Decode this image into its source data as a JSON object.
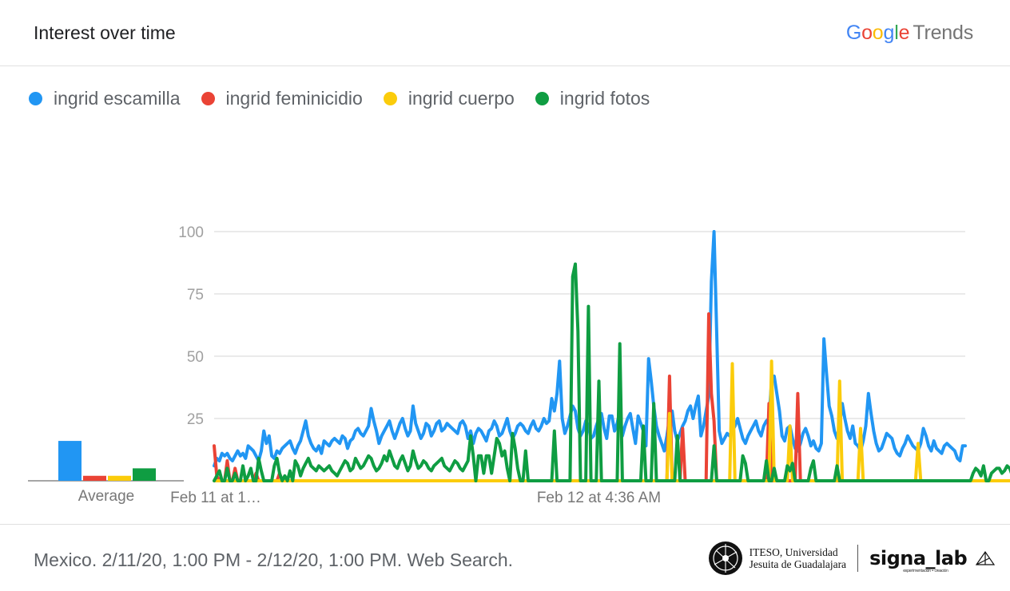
{
  "header": {
    "title": "Interest over time",
    "brand_word": "Google",
    "brand_product": "Trends"
  },
  "footer": {
    "note": "Mexico. 2/11/20, 1:00 PM - 2/12/20, 1:00 PM. Web Search.",
    "iteso_line1": "ITESO, Universidad",
    "iteso_line2": "Jesuita de Guadalajara",
    "signa": "signa_lab",
    "signa_sub": "experimentación • creación"
  },
  "chart_data": {
    "type": "line",
    "ylim": [
      0,
      100
    ],
    "yticks": [
      25,
      50,
      75,
      100
    ],
    "xtick_labels": [
      {
        "label": "Feb 11 at 1…",
        "index": 0
      },
      {
        "label": "Feb 12 at 4:36 AM",
        "index": 147
      }
    ],
    "average_label": "Average",
    "colors": {
      "ingrid escamilla": "#2196F3",
      "ingrid feminicidio": "#EA4335",
      "ingrid cuerpo": "#FBCC0B",
      "ingrid fotos": "#0F9D42"
    },
    "series": [
      {
        "name": "ingrid escamilla",
        "color": "#2196F3",
        "average": 16,
        "values": [
          6,
          9,
          8,
          11,
          10,
          11,
          9,
          8,
          10,
          12,
          10,
          11,
          9,
          14,
          13,
          12,
          10,
          8,
          12,
          20,
          15,
          18,
          10,
          9,
          12,
          11,
          13,
          14,
          15,
          16,
          13,
          11,
          14,
          16,
          20,
          24,
          18,
          15,
          13,
          12,
          14,
          11,
          16,
          15,
          14,
          16,
          17,
          16,
          15,
          18,
          17,
          13,
          16,
          17,
          20,
          21,
          19,
          18,
          20,
          22,
          29,
          24,
          20,
          15,
          18,
          20,
          22,
          24,
          20,
          17,
          20,
          23,
          25,
          21,
          18,
          20,
          30,
          23,
          20,
          17,
          19,
          23,
          22,
          18,
          20,
          23,
          24,
          20,
          21,
          23,
          22,
          21,
          20,
          19,
          23,
          24,
          22,
          17,
          20,
          15,
          19,
          21,
          20,
          18,
          16,
          20,
          21,
          24,
          22,
          18,
          19,
          22,
          25,
          20,
          17,
          19,
          22,
          23,
          22,
          20,
          19,
          22,
          24,
          21,
          20,
          22,
          25,
          23,
          24,
          33,
          28,
          35,
          48,
          25,
          19,
          22,
          26,
          30,
          28,
          21,
          18,
          20,
          24,
          22,
          17,
          18,
          22,
          25,
          27,
          21,
          17,
          26,
          26,
          20,
          23,
          28,
          18,
          22,
          25,
          27,
          21,
          15,
          26,
          23,
          20,
          14,
          49,
          40,
          30,
          22,
          18,
          15,
          12,
          18,
          25,
          28,
          20,
          16,
          19,
          22,
          24,
          28,
          30,
          25,
          30,
          34,
          18,
          22,
          28,
          34,
          80,
          100,
          60,
          20,
          15,
          17,
          19,
          18,
          20,
          22,
          25,
          21,
          17,
          15,
          18,
          20,
          22,
          24,
          20,
          18,
          22,
          24,
          25,
          40,
          42,
          35,
          28,
          18,
          16,
          21,
          22,
          17,
          13,
          12,
          15,
          19,
          21,
          18,
          14,
          16,
          13,
          12,
          15,
          57,
          43,
          30,
          26,
          20,
          17,
          22,
          31,
          25,
          20,
          17,
          22,
          15,
          14,
          12,
          16,
          22,
          35,
          27,
          20,
          15,
          12,
          13,
          16,
          19,
          18,
          17,
          13,
          11,
          10,
          13,
          15,
          18,
          16,
          14,
          13,
          12,
          15,
          21,
          18,
          14,
          12,
          16,
          13,
          12,
          11,
          14,
          15,
          14,
          13,
          12,
          9,
          8,
          14,
          14
        ]
      },
      {
        "name": "ingrid feminicidio",
        "color": "#EA4335",
        "average": 2,
        "values": [
          14,
          2,
          0,
          0,
          0,
          8,
          0,
          0,
          5,
          0,
          0,
          0,
          0,
          0,
          0,
          0,
          3,
          0,
          0,
          0,
          0,
          0,
          0,
          0,
          0,
          3,
          0,
          0,
          0,
          0,
          0,
          0,
          0,
          0,
          0,
          0,
          0,
          0,
          0,
          0,
          0,
          0,
          0,
          0,
          0,
          0,
          0,
          0,
          0,
          0,
          0,
          0,
          0,
          0,
          0,
          0,
          0,
          0,
          0,
          0,
          0,
          0,
          0,
          0,
          0,
          0,
          0,
          0,
          0,
          0,
          0,
          0,
          0,
          0,
          0,
          0,
          0,
          0,
          0,
          0,
          0,
          0,
          0,
          0,
          0,
          0,
          0,
          0,
          0,
          0,
          0,
          0,
          0,
          0,
          0,
          0,
          0,
          0,
          0,
          0,
          0,
          0,
          0,
          0,
          0,
          0,
          0,
          0,
          0,
          0,
          0,
          0,
          0,
          0,
          0,
          0,
          0,
          0,
          0,
          0,
          0,
          0,
          0,
          0,
          0,
          0,
          0,
          0,
          0,
          0,
          0,
          0,
          0,
          0,
          0,
          0,
          0,
          0,
          0,
          0,
          0,
          0,
          0,
          0,
          0,
          0,
          0,
          0,
          0,
          0,
          0,
          0,
          0,
          0,
          0,
          0,
          0,
          0,
          0,
          0,
          0,
          0,
          0,
          0,
          0,
          0,
          0,
          0,
          0,
          0,
          0,
          0,
          0,
          0,
          42,
          0,
          0,
          0,
          0,
          21,
          0,
          0,
          0,
          0,
          0,
          0,
          0,
          0,
          0,
          67,
          35,
          24,
          0,
          0,
          0,
          0,
          0,
          0,
          0,
          0,
          0,
          0,
          0,
          0,
          0,
          0,
          0,
          0,
          0,
          0,
          0,
          0,
          31,
          0,
          0,
          0,
          0,
          0,
          0,
          0,
          0,
          0,
          0,
          35,
          0,
          0,
          0,
          0,
          0,
          0,
          0,
          0,
          0,
          0,
          0,
          0,
          0,
          0,
          0,
          0,
          0,
          0,
          0,
          0,
          0,
          0,
          0,
          0,
          0,
          0,
          0,
          0,
          0,
          0,
          0,
          0,
          0,
          0,
          0,
          0,
          0,
          0,
          0,
          0,
          0,
          0,
          0,
          0,
          0,
          0,
          0,
          0,
          0,
          0,
          0,
          0,
          0,
          0,
          0,
          0,
          0,
          0,
          0,
          0,
          0,
          0,
          0,
          0,
          0,
          0,
          0,
          0,
          0,
          0,
          0,
          0,
          0,
          0,
          0,
          0,
          0,
          0,
          0,
          0,
          0,
          0,
          0,
          0,
          0,
          0,
          0,
          0,
          0,
          0,
          0,
          0,
          0,
          0,
          0,
          0,
          0,
          0,
          0,
          0,
          5,
          0,
          2,
          0,
          0,
          0
        ]
      },
      {
        "name": "ingrid cuerpo",
        "color": "#FBCC0B",
        "average": 2,
        "values": [
          0,
          0,
          0,
          0,
          0,
          0,
          0,
          0,
          0,
          0,
          0,
          0,
          0,
          0,
          0,
          0,
          0,
          0,
          0,
          0,
          0,
          0,
          0,
          0,
          0,
          0,
          0,
          0,
          0,
          0,
          0,
          0,
          0,
          0,
          0,
          0,
          0,
          0,
          0,
          0,
          0,
          0,
          0,
          0,
          0,
          0,
          0,
          0,
          0,
          0,
          0,
          0,
          0,
          0,
          0,
          0,
          0,
          0,
          0,
          0,
          0,
          0,
          0,
          0,
          0,
          0,
          0,
          0,
          0,
          0,
          0,
          0,
          0,
          0,
          0,
          0,
          0,
          0,
          0,
          0,
          0,
          0,
          0,
          0,
          0,
          0,
          0,
          0,
          0,
          0,
          0,
          0,
          0,
          0,
          0,
          0,
          0,
          0,
          0,
          0,
          0,
          0,
          0,
          0,
          0,
          0,
          0,
          0,
          0,
          0,
          0,
          0,
          0,
          0,
          0,
          0,
          0,
          0,
          0,
          0,
          0,
          0,
          0,
          0,
          0,
          0,
          0,
          0,
          0,
          0,
          0,
          0,
          0,
          0,
          0,
          0,
          0,
          0,
          0,
          0,
          0,
          0,
          0,
          0,
          0,
          0,
          0,
          0,
          0,
          0,
          0,
          0,
          0,
          0,
          0,
          0,
          0,
          0,
          0,
          0,
          0,
          0,
          0,
          0,
          0,
          0,
          0,
          0,
          0,
          0,
          0,
          0,
          0,
          0,
          27,
          0,
          0,
          0,
          0,
          0,
          0,
          0,
          0,
          0,
          0,
          0,
          0,
          0,
          0,
          0,
          0,
          0,
          0,
          0,
          0,
          0,
          0,
          0,
          47,
          0,
          0,
          0,
          0,
          0,
          0,
          0,
          0,
          0,
          0,
          0,
          0,
          0,
          0,
          48,
          0,
          0,
          0,
          0,
          0,
          0,
          22,
          0,
          0,
          0,
          0,
          0,
          0,
          0,
          0,
          0,
          0,
          0,
          0,
          0,
          0,
          0,
          0,
          0,
          0,
          40,
          0,
          0,
          0,
          0,
          0,
          0,
          0,
          21,
          0,
          0,
          0,
          0,
          0,
          0,
          0,
          0,
          0,
          0,
          0,
          0,
          0,
          0,
          0,
          0,
          0,
          0,
          0,
          0,
          0,
          15,
          0,
          0,
          0,
          0,
          0,
          0,
          0,
          0,
          0,
          0,
          0,
          0,
          0,
          0,
          0,
          0,
          0,
          0,
          0,
          0,
          0,
          0,
          0,
          0,
          0,
          0,
          0,
          0,
          0,
          0,
          0,
          0,
          0,
          0,
          0,
          0,
          0,
          0,
          0,
          0
        ]
      },
      {
        "name": "ingrid fotos",
        "color": "#0F9D42",
        "average": 5,
        "values": [
          0,
          2,
          4,
          0,
          0,
          5,
          0,
          0,
          3,
          0,
          0,
          6,
          0,
          2,
          5,
          0,
          0,
          9,
          4,
          0,
          0,
          0,
          0,
          6,
          9,
          3,
          0,
          2,
          0,
          4,
          0,
          8,
          6,
          2,
          5,
          7,
          9,
          6,
          5,
          4,
          6,
          5,
          4,
          5,
          6,
          4,
          3,
          2,
          4,
          6,
          8,
          7,
          4,
          5,
          9,
          7,
          5,
          6,
          8,
          10,
          9,
          6,
          4,
          5,
          7,
          10,
          8,
          12,
          9,
          6,
          5,
          8,
          10,
          7,
          4,
          6,
          12,
          8,
          5,
          6,
          8,
          7,
          5,
          4,
          6,
          7,
          8,
          9,
          6,
          5,
          4,
          6,
          8,
          7,
          5,
          4,
          6,
          8,
          18,
          10,
          0,
          10,
          10,
          3,
          10,
          10,
          3,
          10,
          17,
          15,
          10,
          12,
          5,
          0,
          19,
          13,
          5,
          0,
          0,
          12,
          0,
          0,
          0,
          0,
          0,
          0,
          0,
          0,
          0,
          0,
          20,
          0,
          0,
          0,
          0,
          0,
          0,
          82,
          87,
          60,
          0,
          0,
          0,
          70,
          0,
          0,
          0,
          40,
          0,
          0,
          0,
          0,
          0,
          0,
          0,
          55,
          0,
          0,
          0,
          0,
          0,
          0,
          0,
          0,
          22,
          0,
          0,
          0,
          31,
          0,
          0,
          0,
          0,
          0,
          0,
          0,
          0,
          18,
          0,
          0,
          0,
          0,
          0,
          0,
          0,
          0,
          0,
          0,
          0,
          0,
          0,
          14,
          0,
          0,
          0,
          0,
          0,
          0,
          0,
          0,
          0,
          0,
          10,
          7,
          0,
          0,
          0,
          0,
          0,
          0,
          0,
          8,
          0,
          0,
          5,
          0,
          0,
          0,
          0,
          6,
          4,
          7,
          0,
          0,
          0,
          0,
          0,
          0,
          5,
          8,
          0,
          0,
          0,
          0,
          0,
          0,
          0,
          0,
          6,
          0,
          0,
          0,
          0,
          0,
          0,
          0,
          0,
          0,
          0,
          0,
          0,
          0,
          0,
          0,
          0,
          0,
          0,
          0,
          0,
          0,
          0,
          0,
          0,
          0,
          0,
          0,
          0,
          0,
          0,
          0,
          0,
          0,
          0,
          0,
          0,
          0,
          0,
          0,
          0,
          0,
          0,
          0,
          0,
          0,
          0,
          0,
          0,
          0,
          0,
          0,
          3,
          5,
          4,
          2,
          6,
          0,
          0,
          3,
          4,
          5,
          5,
          3,
          4,
          6,
          5,
          2,
          3,
          4,
          5,
          6,
          4,
          3
        ]
      }
    ]
  }
}
